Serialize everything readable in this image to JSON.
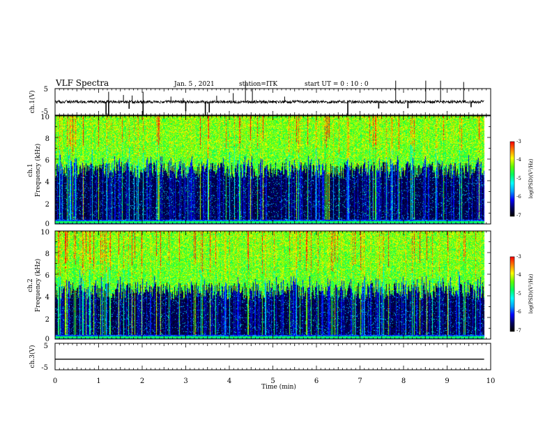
{
  "header": {
    "title": "VLF Spectra",
    "date": "Jan. 5 , 2021",
    "station": "station=ITK",
    "start": "start UT =  0 : 10 : 0"
  },
  "chart_data": [
    {
      "type": "line",
      "name": "ch1_waveform",
      "ylabel": "ch.1(V)",
      "ylim": [
        -5,
        5
      ],
      "yticks": [
        "5",
        "-5"
      ],
      "xlim": [
        0,
        10
      ],
      "data_end_min": 9.85,
      "baseline_v": 0.0,
      "noise_v": 0.6,
      "spikes_up": [
        {
          "t": 1.23,
          "v": 3.8
        },
        {
          "t": 1.57,
          "v": 2.6
        },
        {
          "t": 1.77,
          "v": 2.4
        },
        {
          "t": 2.02,
          "v": 3.8
        },
        {
          "t": 2.66,
          "v": 2.0
        },
        {
          "t": 2.94,
          "v": 1.4
        },
        {
          "t": 3.71,
          "v": 2.3
        },
        {
          "t": 4.09,
          "v": 3.3
        },
        {
          "t": 4.37,
          "v": 8.0
        },
        {
          "t": 4.53,
          "v": 5.0
        },
        {
          "t": 5.27,
          "v": 2.0
        },
        {
          "t": 7.82,
          "v": 8.0
        },
        {
          "t": 8.51,
          "v": 8.0
        },
        {
          "t": 8.85,
          "v": 8.0
        },
        {
          "t": 9.38,
          "v": 7.5
        }
      ],
      "spikes_down": [
        {
          "t": 1.17,
          "v": -4.8
        },
        {
          "t": 1.23,
          "v": -8.0
        },
        {
          "t": 1.7,
          "v": -2.6
        },
        {
          "t": 2.02,
          "v": -8.0
        },
        {
          "t": 3.0,
          "v": -3.5
        },
        {
          "t": 3.45,
          "v": -5.0
        },
        {
          "t": 3.54,
          "v": -4.0
        },
        {
          "t": 6.72,
          "v": -5.0
        },
        {
          "t": 7.43,
          "v": -2.5
        },
        {
          "t": 8.1,
          "v": -2.4
        },
        {
          "t": 9.55,
          "v": -2.0
        }
      ]
    },
    {
      "type": "heatmap",
      "name": "ch1_spectrogram",
      "ylabel_top": "ch.1",
      "ylabel_bottom": "Frequency (kHz)",
      "ylim": [
        0,
        10
      ],
      "yticks": [
        "0",
        "2",
        "4",
        "6",
        "8",
        "10"
      ],
      "xlim": [
        0,
        10
      ],
      "data_end_min": 9.85,
      "z_label": "log(PSD)(V²/Hz)",
      "z_range": [
        -7,
        -3
      ],
      "z_ticks": [
        "-3",
        "-4",
        "-5",
        "-6",
        "-7"
      ],
      "low_band_khz": [
        0.4,
        5.0
      ],
      "low_band_level": -6.9,
      "high_band_level": -4.6,
      "baseline_line_khz": 0.2
    },
    {
      "type": "heatmap",
      "name": "ch2_spectrogram",
      "ylabel_top": "ch.2",
      "ylabel_bottom": "Frequency (kHz)",
      "ylim": [
        0,
        10
      ],
      "yticks": [
        "0",
        "2",
        "4",
        "6",
        "8",
        "10"
      ],
      "xlim": [
        0,
        10
      ],
      "data_end_min": 9.85,
      "z_label": "log(PSD)(V²/Hz)",
      "z_range": [
        -7,
        -3
      ],
      "z_ticks": [
        "-3",
        "-4",
        "-5",
        "-6",
        "-7"
      ],
      "low_band_khz": [
        0.4,
        4.5
      ],
      "low_band_level": -6.9,
      "high_band_level": -4.6,
      "baseline_line_khz": 0.2
    },
    {
      "type": "line",
      "name": "ch3_waveform",
      "ylabel": "ch.3(V)",
      "ylim": [
        -5,
        5
      ],
      "yticks": [
        "5",
        "-5"
      ],
      "xlim": [
        0,
        10
      ],
      "data_end_min": 9.85,
      "baseline_v": -1.0,
      "xlabel": "Time (min)",
      "xticks": [
        "0",
        "1",
        "2",
        "3",
        "4",
        "5",
        "6",
        "7",
        "8",
        "9",
        "10"
      ]
    }
  ],
  "colors": {
    "background": "#ffffff",
    "axis": "#000000",
    "trace": "#000000",
    "colormap": [
      "#000000",
      "#000060",
      "#0000ff",
      "#00a0ff",
      "#00ffff",
      "#00ff60",
      "#60ff00",
      "#ffff00",
      "#ff8000",
      "#ff0000",
      "#ffffff"
    ]
  }
}
